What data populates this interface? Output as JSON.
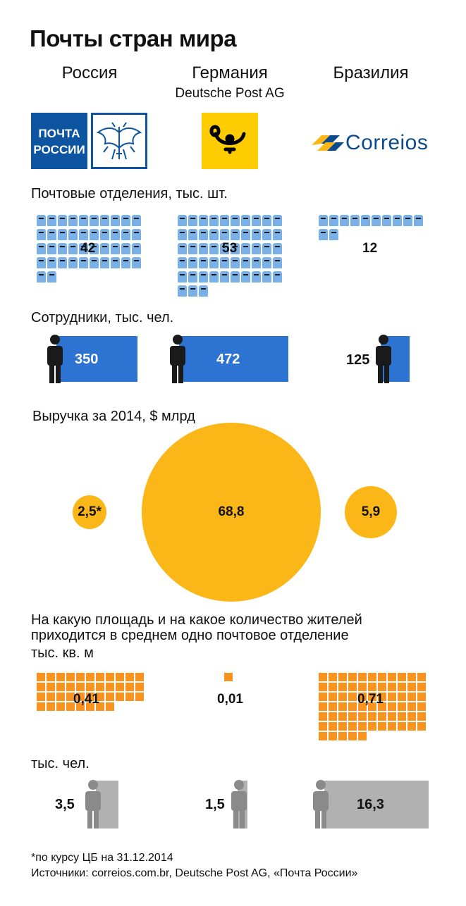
{
  "title": "Почты стран мира",
  "countries": [
    {
      "name": "Россия",
      "sub": ""
    },
    {
      "name": "Германия",
      "sub": "Deutsche Post AG"
    },
    {
      "name": "Бразилия",
      "sub": ""
    }
  ],
  "logos": {
    "russia_text_line1": "ПОЧТА",
    "russia_text_line2": "РОССИИ",
    "brazil_text": "Correios"
  },
  "colors": {
    "blue": "#2d74d2",
    "light_blue": "#7ab0e8",
    "yellow": "#fbb617",
    "orange": "#f7931e",
    "gray": "#b1b1b1",
    "gray_dark": "#8a8a8a"
  },
  "offices": {
    "label": "Почтовые отделения, тыс. шт.",
    "values": [
      "42",
      "53",
      "12"
    ],
    "counts": [
      42,
      53,
      12
    ]
  },
  "staff": {
    "label": "Сотрудники, тыс. чел.",
    "values": [
      "350",
      "472",
      "125"
    ],
    "numbers": [
      350,
      472,
      125
    ]
  },
  "revenue": {
    "label": "Выручка за 2014, $ млрд",
    "values": [
      "2,5*",
      "68,8",
      "5,9"
    ],
    "numbers": [
      2.5,
      68.8,
      5.9
    ]
  },
  "per_office": {
    "label_line1": "На какую площадь и на какое количество жителей",
    "label_line2": "приходится в среднем одно почтовое отделение",
    "area_label": "тыс. кв. м",
    "area_values": [
      "0,41",
      "0,01",
      "0,71"
    ],
    "area_numbers": [
      0.41,
      0.01,
      0.71
    ],
    "people_label": "тыс. чел.",
    "people_values": [
      "3,5",
      "1,5",
      "16,3"
    ],
    "people_numbers": [
      3.5,
      1.5,
      16.3
    ]
  },
  "footer": {
    "note": "*по курсу ЦБ на 31.12.2014",
    "sources": "Источники: correios.com.br, Deutsche Post AG, «Почта России»"
  }
}
